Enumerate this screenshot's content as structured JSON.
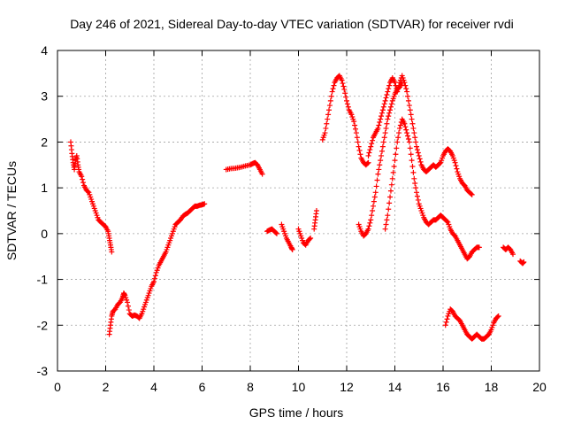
{
  "chart_data": {
    "type": "scatter",
    "title": "Day 246 of 2021, Sidereal Day-to-day VTEC variation (SDTVAR) for receiver rvdi",
    "xlabel": "GPS time / hours",
    "ylabel": "SDTVAR / TECUs",
    "xlim": [
      0,
      20
    ],
    "ylim": [
      -3,
      4
    ],
    "xticks": [
      "0",
      "2",
      "4",
      "6",
      "8",
      "10",
      "12",
      "14",
      "16",
      "18",
      "20"
    ],
    "yticks": [
      "-3",
      "-2",
      "-1",
      "0",
      "1",
      "2",
      "3",
      "4"
    ],
    "grid": true,
    "marker": "plus",
    "series_color": "#ff0000",
    "segments": [
      [
        [
          0.55,
          2.0
        ],
        [
          0.6,
          1.75
        ],
        [
          0.65,
          1.55
        ],
        [
          0.7,
          1.4
        ],
        [
          0.75,
          1.6
        ],
        [
          0.8,
          1.7
        ],
        [
          0.85,
          1.5
        ],
        [
          0.9,
          1.35
        ],
        [
          1.0,
          1.25
        ],
        [
          1.1,
          1.05
        ],
        [
          1.2,
          0.95
        ],
        [
          1.3,
          0.9
        ],
        [
          1.4,
          0.75
        ],
        [
          1.5,
          0.6
        ],
        [
          1.6,
          0.45
        ],
        [
          1.7,
          0.3
        ],
        [
          1.8,
          0.25
        ],
        [
          1.9,
          0.2
        ],
        [
          2.0,
          0.15
        ],
        [
          2.1,
          0.05
        ],
        [
          2.15,
          -0.1
        ],
        [
          2.2,
          -0.25
        ],
        [
          2.25,
          -0.4
        ]
      ],
      [
        [
          2.15,
          -2.2
        ],
        [
          2.2,
          -2.0
        ],
        [
          2.25,
          -1.8
        ],
        [
          2.3,
          -1.7
        ],
        [
          2.4,
          -1.65
        ],
        [
          2.5,
          -1.55
        ],
        [
          2.6,
          -1.5
        ],
        [
          2.7,
          -1.4
        ],
        [
          2.75,
          -1.3
        ],
        [
          2.8,
          -1.35
        ],
        [
          2.9,
          -1.5
        ],
        [
          3.0,
          -1.75
        ],
        [
          3.1,
          -1.8
        ],
        [
          3.2,
          -1.78
        ],
        [
          3.3,
          -1.8
        ],
        [
          3.4,
          -1.85
        ],
        [
          3.5,
          -1.75
        ],
        [
          3.6,
          -1.6
        ],
        [
          3.7,
          -1.45
        ],
        [
          3.8,
          -1.3
        ],
        [
          3.9,
          -1.15
        ],
        [
          4.0,
          -1.05
        ],
        [
          4.1,
          -0.85
        ],
        [
          4.2,
          -0.7
        ],
        [
          4.3,
          -0.6
        ],
        [
          4.4,
          -0.5
        ],
        [
          4.5,
          -0.4
        ],
        [
          4.6,
          -0.25
        ],
        [
          4.7,
          -0.1
        ],
        [
          4.8,
          0.05
        ],
        [
          4.9,
          0.2
        ],
        [
          5.0,
          0.25
        ],
        [
          5.1,
          0.3
        ],
        [
          5.2,
          0.38
        ],
        [
          5.3,
          0.42
        ],
        [
          5.4,
          0.45
        ],
        [
          5.5,
          0.5
        ],
        [
          5.6,
          0.55
        ],
        [
          5.7,
          0.6
        ],
        [
          5.8,
          0.6
        ],
        [
          5.9,
          0.62
        ],
        [
          6.0,
          0.63
        ],
        [
          6.1,
          0.65
        ]
      ],
      [
        [
          7.0,
          1.4
        ],
        [
          7.2,
          1.42
        ],
        [
          7.4,
          1.43
        ],
        [
          7.6,
          1.45
        ],
        [
          7.8,
          1.48
        ],
        [
          8.0,
          1.5
        ],
        [
          8.1,
          1.53
        ],
        [
          8.2,
          1.55
        ],
        [
          8.3,
          1.5
        ],
        [
          8.4,
          1.4
        ],
        [
          8.5,
          1.3
        ]
      ],
      [
        [
          8.7,
          0.05
        ],
        [
          8.8,
          0.08
        ],
        [
          8.9,
          0.1
        ],
        [
          9.0,
          0.05
        ],
        [
          9.1,
          0.0
        ]
      ],
      [
        [
          9.3,
          0.2
        ],
        [
          9.4,
          0.05
        ],
        [
          9.5,
          -0.1
        ],
        [
          9.6,
          -0.2
        ],
        [
          9.7,
          -0.3
        ],
        [
          9.75,
          -0.35
        ]
      ],
      [
        [
          10.0,
          0.1
        ],
        [
          10.1,
          -0.05
        ],
        [
          10.2,
          -0.2
        ],
        [
          10.3,
          -0.25
        ],
        [
          10.4,
          -0.15
        ],
        [
          10.5,
          -0.1
        ]
      ],
      [
        [
          10.65,
          0.1
        ],
        [
          10.7,
          0.3
        ],
        [
          10.75,
          0.5
        ]
      ],
      [
        [
          11.0,
          2.05
        ],
        [
          11.1,
          2.2
        ],
        [
          11.2,
          2.5
        ],
        [
          11.3,
          2.8
        ],
        [
          11.4,
          3.1
        ],
        [
          11.5,
          3.3
        ],
        [
          11.6,
          3.4
        ],
        [
          11.7,
          3.45
        ],
        [
          11.8,
          3.35
        ],
        [
          11.9,
          3.15
        ],
        [
          12.0,
          2.9
        ],
        [
          12.1,
          2.7
        ],
        [
          12.2,
          2.6
        ],
        [
          12.3,
          2.45
        ],
        [
          12.4,
          2.2
        ],
        [
          12.5,
          1.9
        ],
        [
          12.6,
          1.65
        ],
        [
          12.7,
          1.55
        ],
        [
          12.8,
          1.5
        ],
        [
          12.9,
          1.55
        ]
      ],
      [
        [
          12.9,
          1.7
        ],
        [
          13.0,
          1.9
        ],
        [
          13.1,
          2.1
        ],
        [
          13.2,
          2.2
        ],
        [
          13.3,
          2.3
        ],
        [
          13.4,
          2.5
        ],
        [
          13.5,
          2.7
        ],
        [
          13.6,
          2.9
        ],
        [
          13.7,
          3.1
        ],
        [
          13.8,
          3.3
        ],
        [
          13.9,
          3.4
        ],
        [
          14.0,
          3.3
        ],
        [
          14.1,
          3.1
        ],
        [
          14.2,
          3.3
        ],
        [
          14.3,
          3.45
        ],
        [
          14.4,
          3.3
        ],
        [
          14.5,
          3.1
        ],
        [
          14.6,
          2.8
        ],
        [
          14.7,
          2.5
        ],
        [
          14.8,
          2.2
        ],
        [
          14.9,
          1.9
        ],
        [
          15.0,
          1.7
        ],
        [
          15.1,
          1.5
        ],
        [
          15.2,
          1.4
        ],
        [
          15.3,
          1.35
        ],
        [
          15.4,
          1.4
        ],
        [
          15.5,
          1.45
        ],
        [
          15.6,
          1.5
        ],
        [
          15.7,
          1.45
        ],
        [
          15.8,
          1.5
        ],
        [
          15.9,
          1.55
        ],
        [
          16.0,
          1.7
        ],
        [
          16.1,
          1.8
        ],
        [
          16.2,
          1.85
        ],
        [
          16.3,
          1.8
        ],
        [
          16.4,
          1.7
        ],
        [
          16.5,
          1.55
        ],
        [
          16.6,
          1.35
        ],
        [
          16.7,
          1.2
        ],
        [
          16.8,
          1.1
        ],
        [
          16.9,
          1.05
        ],
        [
          17.0,
          0.95
        ],
        [
          17.1,
          0.9
        ],
        [
          17.2,
          0.85
        ]
      ],
      [
        [
          13.6,
          0.1
        ],
        [
          13.7,
          0.4
        ],
        [
          13.8,
          0.8
        ],
        [
          13.9,
          1.2
        ],
        [
          14.0,
          1.6
        ],
        [
          14.1,
          2.0
        ],
        [
          14.2,
          2.3
        ],
        [
          14.3,
          2.5
        ],
        [
          14.4,
          2.4
        ],
        [
          14.5,
          2.2
        ],
        [
          14.6,
          2.0
        ],
        [
          14.7,
          1.6
        ],
        [
          14.8,
          1.2
        ],
        [
          14.9,
          0.9
        ],
        [
          15.0,
          0.65
        ],
        [
          15.1,
          0.5
        ],
        [
          15.2,
          0.35
        ],
        [
          15.3,
          0.25
        ],
        [
          15.4,
          0.2
        ],
        [
          15.5,
          0.25
        ],
        [
          15.6,
          0.3
        ],
        [
          15.7,
          0.3
        ],
        [
          15.8,
          0.35
        ],
        [
          15.9,
          0.4
        ],
        [
          16.0,
          0.35
        ],
        [
          16.1,
          0.3
        ],
        [
          16.2,
          0.25
        ],
        [
          16.3,
          0.1
        ],
        [
          16.4,
          0.0
        ],
        [
          16.5,
          -0.05
        ],
        [
          16.6,
          -0.15
        ],
        [
          16.7,
          -0.25
        ],
        [
          16.8,
          -0.35
        ],
        [
          16.9,
          -0.45
        ],
        [
          17.0,
          -0.55
        ],
        [
          17.1,
          -0.5
        ],
        [
          17.2,
          -0.4
        ],
        [
          17.3,
          -0.35
        ],
        [
          17.4,
          -0.3
        ],
        [
          17.5,
          -0.3
        ]
      ],
      [
        [
          12.5,
          0.2
        ],
        [
          12.6,
          0.05
        ],
        [
          12.7,
          -0.05
        ],
        [
          12.8,
          0.0
        ],
        [
          12.9,
          0.1
        ],
        [
          13.0,
          0.3
        ],
        [
          13.1,
          0.6
        ],
        [
          13.2,
          0.9
        ],
        [
          13.3,
          1.3
        ],
        [
          13.4,
          1.6
        ],
        [
          13.5,
          1.9
        ],
        [
          13.6,
          2.2
        ],
        [
          13.7,
          2.5
        ],
        [
          13.8,
          2.7
        ],
        [
          13.9,
          2.9
        ],
        [
          14.0,
          3.05
        ],
        [
          14.1,
          3.15
        ],
        [
          14.2,
          3.2
        ],
        [
          14.3,
          3.3
        ]
      ],
      [
        [
          16.1,
          -2.0
        ],
        [
          16.2,
          -1.8
        ],
        [
          16.3,
          -1.65
        ],
        [
          16.4,
          -1.7
        ],
        [
          16.5,
          -1.8
        ],
        [
          16.6,
          -1.85
        ],
        [
          16.7,
          -1.9
        ],
        [
          16.8,
          -2.0
        ],
        [
          16.9,
          -2.1
        ],
        [
          17.0,
          -2.2
        ],
        [
          17.1,
          -2.25
        ],
        [
          17.2,
          -2.3
        ],
        [
          17.3,
          -2.25
        ],
        [
          17.4,
          -2.2
        ],
        [
          17.5,
          -2.25
        ],
        [
          17.6,
          -2.3
        ],
        [
          17.7,
          -2.3
        ],
        [
          17.8,
          -2.25
        ],
        [
          17.9,
          -2.2
        ],
        [
          18.0,
          -2.1
        ],
        [
          18.1,
          -1.95
        ],
        [
          18.2,
          -1.85
        ],
        [
          18.3,
          -1.8
        ]
      ],
      [
        [
          18.5,
          -0.3
        ],
        [
          18.6,
          -0.35
        ],
        [
          18.7,
          -0.3
        ],
        [
          18.8,
          -0.35
        ],
        [
          18.9,
          -0.45
        ]
      ],
      [
        [
          19.2,
          -0.6
        ],
        [
          19.3,
          -0.65
        ],
        [
          19.35,
          -0.62
        ]
      ]
    ]
  }
}
